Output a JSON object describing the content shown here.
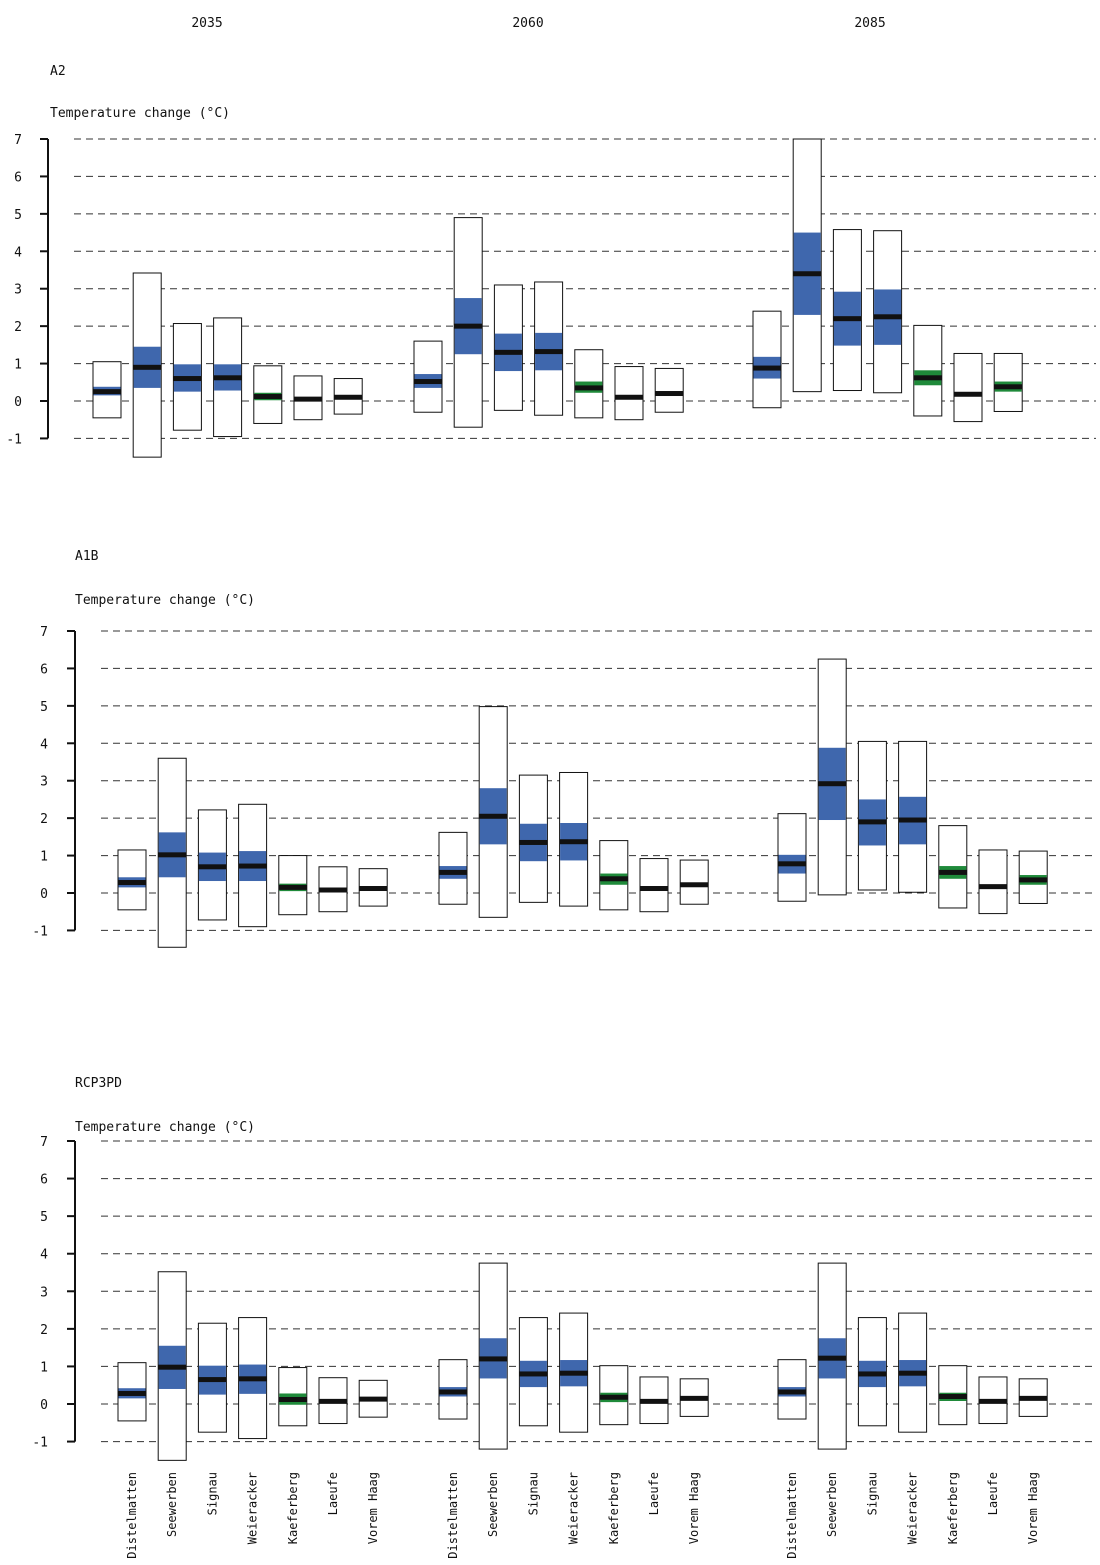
{
  "periods": [
    "2035",
    "2060",
    "2085"
  ],
  "colors": {
    "iqr_blue": "#3f67ad",
    "iqr_green": "#1f8a3a",
    "median": "#111111",
    "site_blue": "#3f67ad",
    "site_green": "#1f8a3a",
    "grid": "#333333"
  },
  "chart_data": [
    {
      "type": "box",
      "title": "A2",
      "ylabel": "Temperature change (°C)",
      "ylim": [
        -1,
        7
      ],
      "yticks": [
        -1,
        0,
        1,
        2,
        3,
        4,
        5,
        6,
        7
      ],
      "grid": "dashed-horizontal",
      "groups": [
        "2035",
        "2060",
        "2085"
      ],
      "sites": [
        "Distelmatten",
        "Seewerben",
        "Signau",
        "Weieracker",
        "Kaeferberg",
        "Laeufe",
        "Vorem Haag"
      ],
      "site_colors": [
        "blue",
        "blue",
        "blue",
        "blue",
        "green",
        "green",
        "green"
      ],
      "boxes": [
        [
          {
            "min": -0.45,
            "q1": 0.15,
            "median": 0.25,
            "q3": 0.38,
            "max": 1.05
          },
          {
            "min": -1.5,
            "q1": 0.35,
            "median": 0.9,
            "q3": 1.45,
            "max": 3.42
          },
          {
            "min": -0.78,
            "q1": 0.25,
            "median": 0.6,
            "q3": 0.98,
            "max": 2.07
          },
          {
            "min": -0.95,
            "q1": 0.28,
            "median": 0.62,
            "q3": 0.98,
            "max": 2.22
          },
          {
            "min": -0.6,
            "q1": 0.02,
            "median": 0.12,
            "q3": 0.22,
            "max": 0.94
          },
          {
            "min": -0.5,
            "q1": 0.0,
            "median": 0.05,
            "q3": 0.1,
            "max": 0.67
          },
          {
            "min": -0.35,
            "q1": 0.05,
            "median": 0.1,
            "q3": 0.15,
            "max": 0.6
          }
        ],
        [
          {
            "min": -0.3,
            "q1": 0.35,
            "median": 0.52,
            "q3": 0.72,
            "max": 1.6
          },
          {
            "min": -0.7,
            "q1": 1.25,
            "median": 2.0,
            "q3": 2.75,
            "max": 4.9
          },
          {
            "min": -0.25,
            "q1": 0.8,
            "median": 1.3,
            "q3": 1.8,
            "max": 3.1
          },
          {
            "min": -0.38,
            "q1": 0.82,
            "median": 1.32,
            "q3": 1.82,
            "max": 3.18
          },
          {
            "min": -0.45,
            "q1": 0.22,
            "median": 0.35,
            "q3": 0.52,
            "max": 1.37
          },
          {
            "min": -0.5,
            "q1": 0.05,
            "median": 0.1,
            "q3": 0.15,
            "max": 0.92
          },
          {
            "min": -0.3,
            "q1": 0.15,
            "median": 0.2,
            "q3": 0.25,
            "max": 0.87
          }
        ],
        [
          {
            "min": -0.18,
            "q1": 0.6,
            "median": 0.88,
            "q3": 1.18,
            "max": 2.4
          },
          {
            "min": 0.25,
            "q1": 2.3,
            "median": 3.4,
            "q3": 4.5,
            "max": 7.0
          },
          {
            "min": 0.28,
            "q1": 1.48,
            "median": 2.2,
            "q3": 2.92,
            "max": 4.58
          },
          {
            "min": 0.22,
            "q1": 1.5,
            "median": 2.25,
            "q3": 2.98,
            "max": 4.55
          },
          {
            "min": -0.4,
            "q1": 0.42,
            "median": 0.62,
            "q3": 0.82,
            "max": 2.02
          },
          {
            "min": -0.55,
            "q1": 0.13,
            "median": 0.18,
            "q3": 0.23,
            "max": 1.27
          },
          {
            "min": -0.28,
            "q1": 0.25,
            "median": 0.38,
            "q3": 0.52,
            "max": 1.27
          }
        ]
      ]
    },
    {
      "type": "box",
      "title": "A1B",
      "ylabel": "Temperature change (°C)",
      "ylim": [
        -1,
        7
      ],
      "yticks": [
        -1,
        0,
        1,
        2,
        3,
        4,
        5,
        6,
        7
      ],
      "grid": "dashed-horizontal",
      "groups": [
        "2035",
        "2060",
        "2085"
      ],
      "sites": [
        "Distelmatten",
        "Seewerben",
        "Signau",
        "Weieracker",
        "Kaeferberg",
        "Laeufe",
        "Vorem Haag"
      ],
      "site_colors": [
        "blue",
        "blue",
        "blue",
        "blue",
        "green",
        "green",
        "green"
      ],
      "boxes": [
        [
          {
            "min": -0.45,
            "q1": 0.15,
            "median": 0.28,
            "q3": 0.42,
            "max": 1.15
          },
          {
            "min": -1.45,
            "q1": 0.42,
            "median": 1.02,
            "q3": 1.62,
            "max": 3.6
          },
          {
            "min": -0.72,
            "q1": 0.32,
            "median": 0.7,
            "q3": 1.08,
            "max": 2.22
          },
          {
            "min": -0.9,
            "q1": 0.32,
            "median": 0.72,
            "q3": 1.12,
            "max": 2.37
          },
          {
            "min": -0.58,
            "q1": 0.05,
            "median": 0.15,
            "q3": 0.25,
            "max": 1.0
          },
          {
            "min": -0.5,
            "q1": 0.03,
            "median": 0.08,
            "q3": 0.13,
            "max": 0.7
          },
          {
            "min": -0.35,
            "q1": 0.07,
            "median": 0.12,
            "q3": 0.17,
            "max": 0.65
          }
        ],
        [
          {
            "min": -0.3,
            "q1": 0.38,
            "median": 0.55,
            "q3": 0.72,
            "max": 1.62
          },
          {
            "min": -0.65,
            "q1": 1.3,
            "median": 2.05,
            "q3": 2.8,
            "max": 4.98
          },
          {
            "min": -0.25,
            "q1": 0.85,
            "median": 1.35,
            "q3": 1.85,
            "max": 3.15
          },
          {
            "min": -0.35,
            "q1": 0.87,
            "median": 1.37,
            "q3": 1.87,
            "max": 3.22
          },
          {
            "min": -0.45,
            "q1": 0.22,
            "median": 0.38,
            "q3": 0.52,
            "max": 1.4
          },
          {
            "min": -0.5,
            "q1": 0.07,
            "median": 0.12,
            "q3": 0.17,
            "max": 0.92
          },
          {
            "min": -0.3,
            "q1": 0.17,
            "median": 0.22,
            "q3": 0.27,
            "max": 0.88
          }
        ],
        [
          {
            "min": -0.22,
            "q1": 0.52,
            "median": 0.78,
            "q3": 1.02,
            "max": 2.12
          },
          {
            "min": -0.05,
            "q1": 1.95,
            "median": 2.92,
            "q3": 3.88,
            "max": 6.25
          },
          {
            "min": 0.08,
            "q1": 1.27,
            "median": 1.9,
            "q3": 2.5,
            "max": 4.05
          },
          {
            "min": 0.02,
            "q1": 1.3,
            "median": 1.95,
            "q3": 2.57,
            "max": 4.05
          },
          {
            "min": -0.4,
            "q1": 0.38,
            "median": 0.55,
            "q3": 0.72,
            "max": 1.8
          },
          {
            "min": -0.55,
            "q1": 0.12,
            "median": 0.17,
            "q3": 0.22,
            "max": 1.15
          },
          {
            "min": -0.28,
            "q1": 0.22,
            "median": 0.35,
            "q3": 0.48,
            "max": 1.12
          }
        ]
      ]
    },
    {
      "type": "box",
      "title": "RCP3PD",
      "ylabel": "Temperature change (°C)",
      "ylim": [
        -1,
        7
      ],
      "yticks": [
        -1,
        0,
        1,
        2,
        3,
        4,
        5,
        6,
        7
      ],
      "grid": "dashed-horizontal",
      "groups": [
        "2035",
        "2060",
        "2085"
      ],
      "sites": [
        "Distelmatten",
        "Seewerben",
        "Signau",
        "Weieracker",
        "Kaeferberg",
        "Laeufe",
        "Vorem Haag"
      ],
      "site_colors": [
        "blue",
        "blue",
        "blue",
        "blue",
        "green",
        "green",
        "green"
      ],
      "boxes": [
        [
          {
            "min": -0.45,
            "q1": 0.15,
            "median": 0.28,
            "q3": 0.42,
            "max": 1.1
          },
          {
            "min": -1.5,
            "q1": 0.4,
            "median": 0.98,
            "q3": 1.55,
            "max": 3.52
          },
          {
            "min": -0.75,
            "q1": 0.25,
            "median": 0.65,
            "q3": 1.02,
            "max": 2.15
          },
          {
            "min": -0.92,
            "q1": 0.27,
            "median": 0.67,
            "q3": 1.05,
            "max": 2.3
          },
          {
            "min": -0.58,
            "q1": -0.02,
            "median": 0.12,
            "q3": 0.28,
            "max": 0.97
          },
          {
            "min": -0.52,
            "q1": 0.02,
            "median": 0.07,
            "q3": 0.12,
            "max": 0.7
          },
          {
            "min": -0.35,
            "q1": 0.08,
            "median": 0.13,
            "q3": 0.18,
            "max": 0.63
          }
        ],
        [
          {
            "min": -0.4,
            "q1": 0.2,
            "median": 0.32,
            "q3": 0.45,
            "max": 1.18
          },
          {
            "min": -1.2,
            "q1": 0.68,
            "median": 1.2,
            "q3": 1.75,
            "max": 3.75
          },
          {
            "min": -0.58,
            "q1": 0.45,
            "median": 0.8,
            "q3": 1.15,
            "max": 2.3
          },
          {
            "min": -0.75,
            "q1": 0.47,
            "median": 0.82,
            "q3": 1.17,
            "max": 2.42
          },
          {
            "min": -0.55,
            "q1": 0.05,
            "median": 0.18,
            "q3": 0.3,
            "max": 1.02
          },
          {
            "min": -0.52,
            "q1": 0.02,
            "median": 0.07,
            "q3": 0.12,
            "max": 0.72
          },
          {
            "min": -0.33,
            "q1": 0.1,
            "median": 0.15,
            "q3": 0.2,
            "max": 0.67
          }
        ],
        [
          {
            "min": -0.4,
            "q1": 0.2,
            "median": 0.32,
            "q3": 0.45,
            "max": 1.18
          },
          {
            "min": -1.2,
            "q1": 0.68,
            "median": 1.22,
            "q3": 1.75,
            "max": 3.75
          },
          {
            "min": -0.58,
            "q1": 0.45,
            "median": 0.8,
            "q3": 1.15,
            "max": 2.3
          },
          {
            "min": -0.75,
            "q1": 0.47,
            "median": 0.82,
            "q3": 1.17,
            "max": 2.42
          },
          {
            "min": -0.55,
            "q1": 0.08,
            "median": 0.2,
            "q3": 0.3,
            "max": 1.02
          },
          {
            "min": -0.52,
            "q1": 0.02,
            "median": 0.07,
            "q3": 0.12,
            "max": 0.72
          },
          {
            "min": -0.33,
            "q1": 0.1,
            "median": 0.15,
            "q3": 0.2,
            "max": 0.67
          }
        ]
      ]
    }
  ]
}
